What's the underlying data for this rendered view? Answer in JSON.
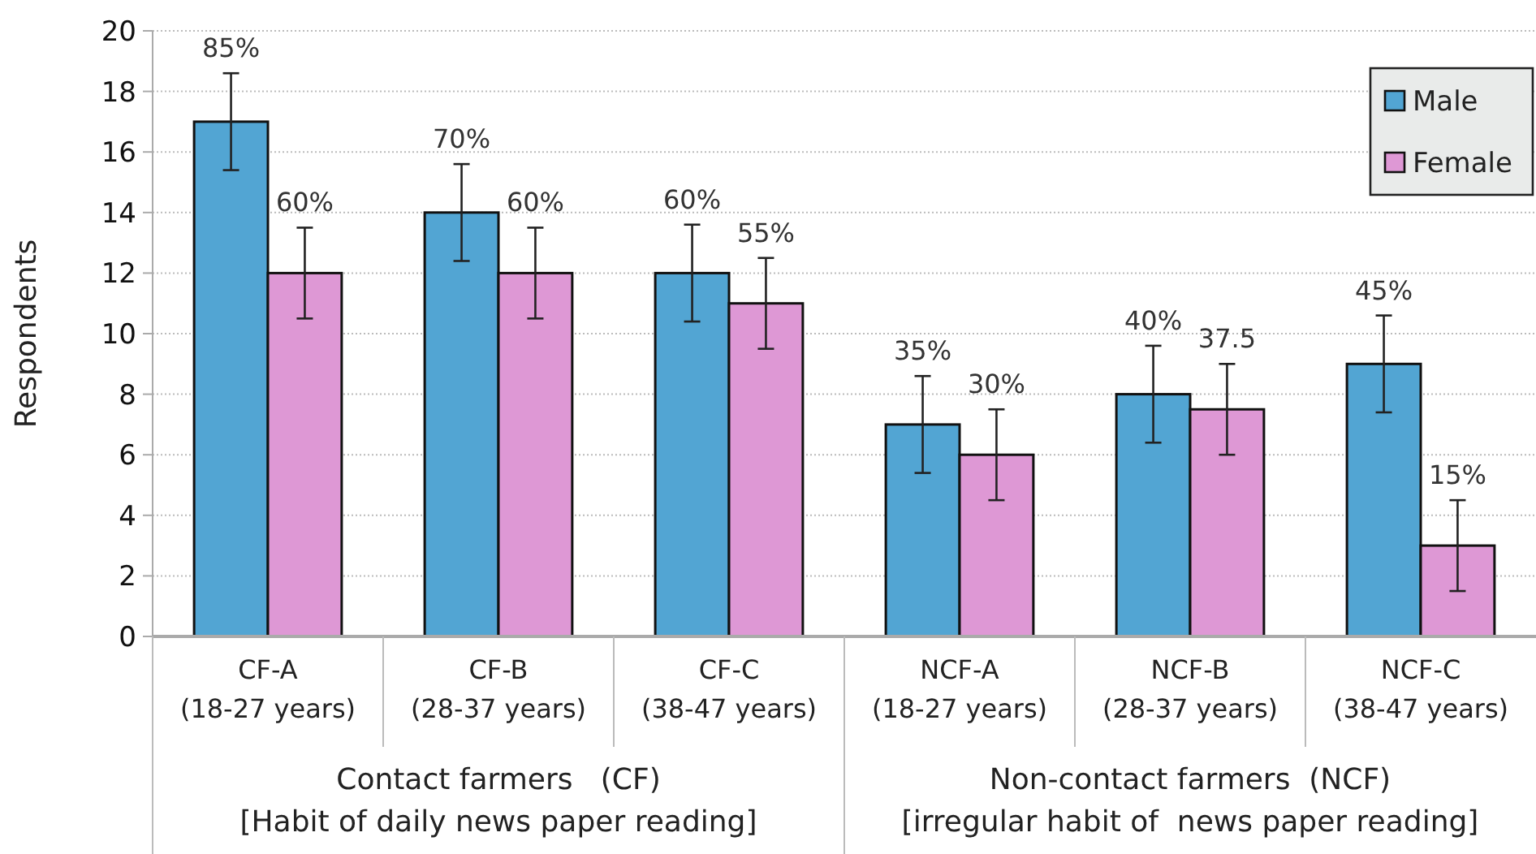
{
  "chart_data": {
    "type": "bar",
    "ylabel": "Respondents",
    "categories": [
      "CF-A\n(18-27 years)",
      "CF-B\n(28-37 years)",
      "CF-C\n(38-47 years)",
      "NCF-A\n(18-27 years)",
      "NCF-B\n(28-37 years)",
      "NCF-C\n(38-47 years)"
    ],
    "series": [
      {
        "name": "Male",
        "color": "#52a5d3",
        "values": [
          17,
          14,
          12,
          7,
          8,
          9
        ],
        "errors": [
          1.6,
          1.6,
          1.6,
          1.6,
          1.6,
          1.6
        ]
      },
      {
        "name": "Female",
        "color": "#de98d5",
        "values": [
          12,
          12,
          11,
          6,
          7.5,
          3
        ],
        "errors": [
          1.5,
          1.5,
          1.5,
          1.5,
          1.5,
          1.5
        ]
      }
    ],
    "ylim": [
      0,
      20
    ],
    "yticks": [
      0,
      2,
      4,
      6,
      8,
      10,
      12,
      14,
      16,
      18,
      20
    ],
    "grid": "y",
    "legend": "top right",
    "annotations": [
      "Contact farmers   (CF)\n[Habit of daily news paper reading]",
      "Non-contact farmers  (NCF)\n[irregular habit of  news paper reading]",
      {
        "text": "85%",
        "x": "CF-A\n(18-27 years)",
        "y": 17
      },
      {
        "text": "60%",
        "x": "CF-A\n(18-27 years)",
        "y": 12
      },
      {
        "text": "70%",
        "x": "CF-B\n(28-37 years)",
        "y": 14
      },
      {
        "text": "60%",
        "x": "CF-B\n(28-37 years)",
        "y": 12
      },
      {
        "text": "60%",
        "x": "CF-C\n(38-47 years)",
        "y": 12
      },
      {
        "text": "55%",
        "x": "CF-C\n(38-47 years)",
        "y": 11
      },
      {
        "text": "35%",
        "x": "NCF-A\n(18-27 years)",
        "y": 7
      },
      {
        "text": "30%",
        "x": "NCF-A\n(18-27 years)",
        "y": 6
      },
      {
        "text": "40%",
        "x": "NCF-B\n(28-37 years)",
        "y": 8
      },
      {
        "text": "37.5",
        "x": "NCF-B\n(28-37 years)",
        "y": 7.5
      },
      {
        "text": "45%",
        "x": "NCF-C\n(38-47 years)",
        "y": 9
      },
      {
        "text": "15%",
        "x": "NCF-C\n(38-47 years)",
        "y": 3
      }
    ]
  }
}
